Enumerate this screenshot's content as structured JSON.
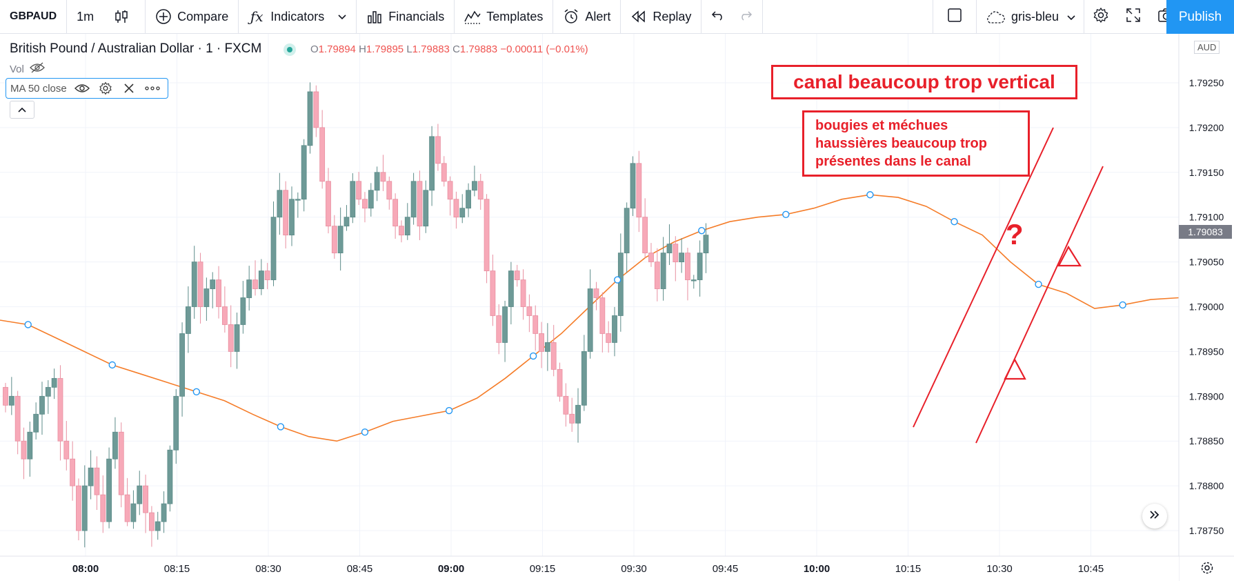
{
  "toolbar": {
    "symbol": "GBPAUD",
    "interval": "1m",
    "compare_label": "Compare",
    "indicators_label": "Indicators",
    "financials_label": "Financials",
    "templates_label": "Templates",
    "alert_label": "Alert",
    "replay_label": "Replay",
    "layout_name": "gris-bleu",
    "publish_label": "Publish"
  },
  "legend": {
    "title": "British Pound / Australian Dollar · 1 · FXCM",
    "o_key": "O",
    "o": "1.79894",
    "h_key": "H",
    "h": "1.79895",
    "l_key": "L",
    "l": "1.79883",
    "c_key": "C",
    "c": "1.79883",
    "change": "−0.00011 (−0.01%)",
    "vol_label": "Vol",
    "ma_label": "MA 50 close"
  },
  "currency_label": "AUD",
  "last_price": "1.79083",
  "annotations": {
    "title": "canal beaucoup trop vertical",
    "note_lines": [
      "bougies et méchues",
      "haussières beaucoup trop",
      "présentes dans le canal"
    ],
    "question": "?"
  },
  "colors": {
    "up": "#6e9a97",
    "down": "#f7a9b8",
    "ma": "#f57c28",
    "annotation": "#e8202a",
    "accent": "#2196f3"
  },
  "chart_data": {
    "type": "candlestick",
    "price_ticks": [
      "1.79250",
      "1.79200",
      "1.79150",
      "1.79100",
      "1.79050",
      "1.79000",
      "1.78950",
      "1.78900",
      "1.78850",
      "1.78800",
      "1.78750"
    ],
    "time_ticks": [
      {
        "label": "08:00",
        "bold": true
      },
      {
        "label": "08:15",
        "bold": false
      },
      {
        "label": "08:30",
        "bold": false
      },
      {
        "label": "08:45",
        "bold": false
      },
      {
        "label": "09:00",
        "bold": true
      },
      {
        "label": "09:15",
        "bold": false
      },
      {
        "label": "09:30",
        "bold": false
      },
      {
        "label": "09:45",
        "bold": false
      },
      {
        "label": "10:00",
        "bold": true
      },
      {
        "label": "10:15",
        "bold": false
      },
      {
        "label": "10:30",
        "bold": false
      },
      {
        "label": "10:45",
        "bold": false
      }
    ],
    "y_range": [
      1.7872,
      1.7928
    ],
    "close_path": [
      1.7889,
      1.789,
      1.7885,
      1.7883,
      1.7886,
      1.7888,
      1.789,
      1.7891,
      1.7892,
      1.7885,
      1.7883,
      1.788,
      1.7875,
      1.788,
      1.7882,
      1.7879,
      1.7876,
      1.7883,
      1.7886,
      1.7879,
      1.7876,
      1.7878,
      1.788,
      1.7877,
      1.7875,
      1.7876,
      1.7878,
      1.7884,
      1.789,
      1.7897,
      1.79,
      1.7905,
      1.79,
      1.7902,
      1.7903,
      1.79,
      1.7898,
      1.7895,
      1.7898,
      1.7901,
      1.7903,
      1.7902,
      1.7904,
      1.7903,
      1.791,
      1.7913,
      1.7908,
      1.7912,
      1.7912,
      1.7918,
      1.7924,
      1.792,
      1.7914,
      1.7909,
      1.7906,
      1.7909,
      1.791,
      1.7914,
      1.7912,
      1.7911,
      1.7913,
      1.7915,
      1.7914,
      1.7912,
      1.7909,
      1.7908,
      1.791,
      1.7914,
      1.7909,
      1.7913,
      1.7919,
      1.7916,
      1.7914,
      1.7912,
      1.791,
      1.7911,
      1.7913,
      1.7914,
      1.7912,
      1.7904,
      1.7899,
      1.7896,
      1.79,
      1.7904,
      1.7903,
      1.79,
      1.7899,
      1.7897,
      1.7895,
      1.7896,
      1.7893,
      1.789,
      1.7888,
      1.7887,
      1.7889,
      1.7895,
      1.7902,
      1.7901,
      1.7897,
      1.7896,
      1.7899,
      1.7906,
      1.7911,
      1.7916,
      1.791,
      1.7906,
      1.7905,
      1.7902,
      1.7906,
      1.7907,
      1.7905,
      1.7906,
      1.7903,
      1.7903,
      1.7906,
      1.7908
    ],
    "ma50": [
      1.78985,
      1.7898,
      1.78965,
      1.7895,
      1.78935,
      1.78925,
      1.78915,
      1.78905,
      1.78895,
      1.7888,
      1.78866,
      1.78855,
      1.7885,
      1.7886,
      1.78872,
      1.78878,
      1.78884,
      1.78898,
      1.7892,
      1.78945,
      1.7897,
      1.79,
      1.7903,
      1.79055,
      1.79072,
      1.79085,
      1.79095,
      1.791,
      1.79103,
      1.7911,
      1.7912,
      1.79125,
      1.79122,
      1.79112,
      1.79095,
      1.7908,
      1.7905,
      1.79025,
      1.79015,
      1.78998,
      1.79002,
      1.79008,
      1.7901
    ]
  }
}
